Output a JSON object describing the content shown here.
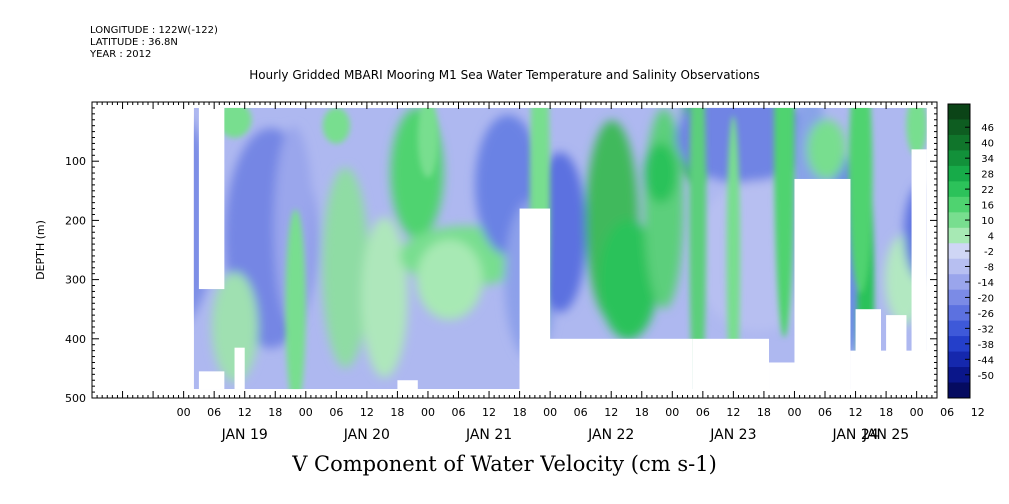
{
  "header": {
    "longitude": "LONGITUDE : 122W(-122)",
    "latitude": "LATITUDE : 36.8N",
    "year": "YEAR : 2012"
  },
  "chart_data": {
    "type": "heatmap",
    "title": "Hourly Gridded MBARI Mooring M1 Sea Water Temperature and Salinity Observations",
    "bottom_title": "V Component of Water Velocity (cm s-1)",
    "ylabel": "DEPTH (m)",
    "ylim": [
      500,
      0
    ],
    "y_ticks": [
      "100",
      "200",
      "300",
      "400",
      "500"
    ],
    "xlim_hours": [
      -18,
      148
    ],
    "x_hour_labels": [
      "00",
      "06",
      "12",
      "18",
      "00",
      "06",
      "12",
      "18",
      "00",
      "06",
      "12",
      "18",
      "00",
      "06",
      "12",
      "18",
      "00",
      "06",
      "12",
      "18",
      "00",
      "06",
      "12",
      "18",
      "00",
      "06",
      "12"
    ],
    "x_day_labels": [
      "JAN 19",
      "JAN 20",
      "JAN 21",
      "JAN 22",
      "JAN 23",
      "JAN 24",
      "JAN 25"
    ],
    "colorbar_levels": [
      "46",
      "40",
      "34",
      "28",
      "22",
      "16",
      "10",
      "4",
      "-2",
      "-8",
      "-14",
      "-20",
      "-26",
      "-32",
      "-38",
      "-44",
      "-50"
    ],
    "colorbar_colors": [
      "#0b4417",
      "#0e5d21",
      "#10752b",
      "#12913a",
      "#17ab49",
      "#2cc25a",
      "#4fd370",
      "#78de8f",
      "#a7e9b4",
      "#cfd6f5",
      "#b7bff1",
      "#9aa5ec",
      "#7b8be6",
      "#5c71e0",
      "#3e59d9",
      "#243fca",
      "#1528ad",
      "#0a168a",
      "#050b60"
    ],
    "grid": false,
    "legend": "colorbar-right"
  }
}
